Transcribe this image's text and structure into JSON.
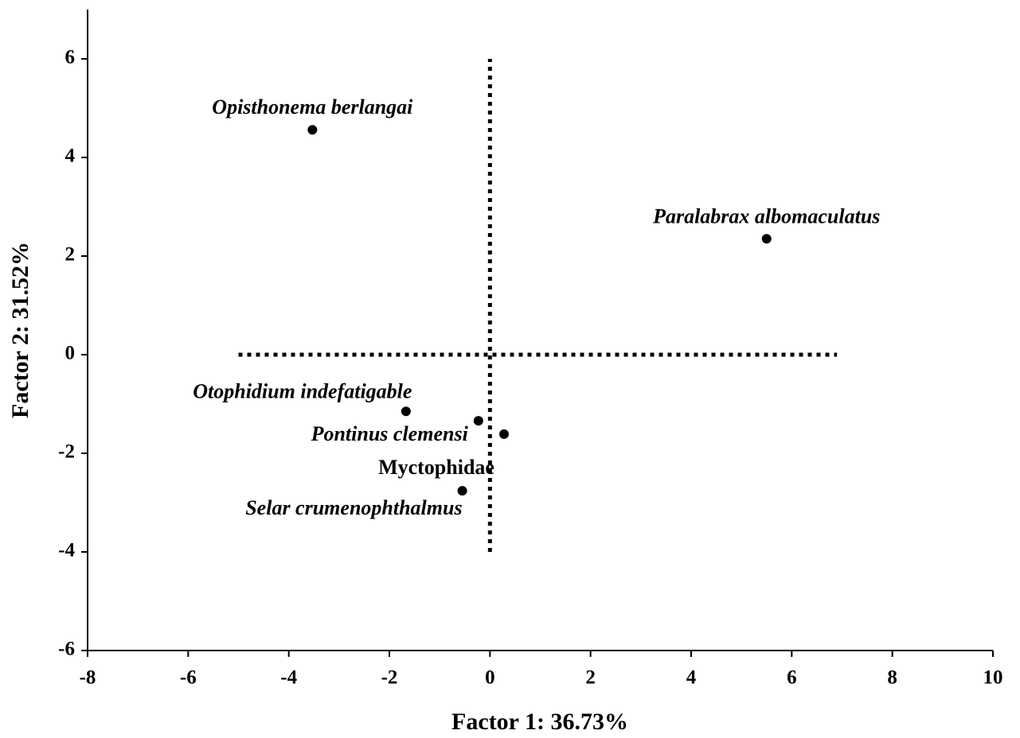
{
  "chart_data": {
    "type": "scatter",
    "x_label": "Factor 1: 36.73%",
    "y_label": "Factor 2: 31.52%",
    "labels": [
      "Opisthonema berlangai",
      "Paralabrax albomaculatus",
      "Otophidium indefatigable",
      "Pontinus clemensi",
      "Myctophidae",
      "Selar crumenophthalmus"
    ],
    "x": [
      -3.53,
      5.5,
      -1.67,
      -0.23,
      0.28,
      -0.55
    ],
    "values": [
      4.56,
      2.35,
      -1.15,
      -1.34,
      -1.61,
      -2.76
    ],
    "color": "#000000",
    "xlim": [
      -8,
      10
    ],
    "xticks": [
      -8,
      -6,
      -4,
      -2,
      0,
      2,
      4,
      6,
      8,
      10
    ],
    "ylim": [
      -6,
      7
    ],
    "yticks": [
      -6,
      -4,
      -2,
      0,
      2,
      4,
      6
    ],
    "hline": {
      "y": 0,
      "xrange": [
        -5,
        6.9
      ]
    },
    "vline": {
      "x": 0,
      "yrange": [
        -4,
        6
      ]
    }
  }
}
